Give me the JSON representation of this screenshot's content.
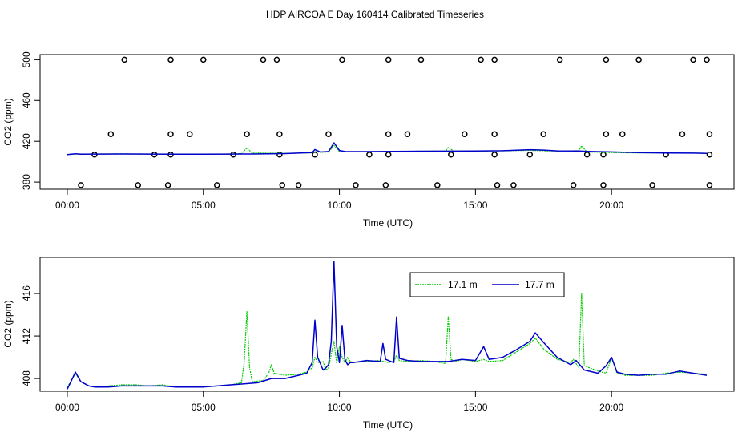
{
  "title": "HDP AIRCOA E  Day 160414  Calibrated Timeseries",
  "colors": {
    "green": "#00cc00",
    "blue": "#0000cc",
    "black": "#000000"
  },
  "chart_data": [
    {
      "type": "line",
      "xlabel": "Time (UTC)",
      "ylabel": "CO2 (ppm)",
      "xlim": [
        -1,
        24.5
      ],
      "ylim": [
        373,
        505
      ],
      "xticks": [
        0,
        5,
        10,
        15,
        20
      ],
      "xtick_labels": [
        "00:00",
        "05:00",
        "10:00",
        "15:00",
        "20:00"
      ],
      "yticks": [
        380,
        420,
        460,
        500
      ],
      "ytick_labels": [
        "380",
        "420",
        "460",
        "500"
      ],
      "calibration_points": [
        {
          "x": 2.1,
          "y": 500
        },
        {
          "x": 3.8,
          "y": 500
        },
        {
          "x": 5.0,
          "y": 500
        },
        {
          "x": 7.2,
          "y": 500
        },
        {
          "x": 7.7,
          "y": 500
        },
        {
          "x": 10.1,
          "y": 500
        },
        {
          "x": 11.8,
          "y": 500
        },
        {
          "x": 13.0,
          "y": 500
        },
        {
          "x": 15.2,
          "y": 500
        },
        {
          "x": 15.7,
          "y": 500
        },
        {
          "x": 18.1,
          "y": 500
        },
        {
          "x": 19.8,
          "y": 500
        },
        {
          "x": 21.0,
          "y": 500
        },
        {
          "x": 23.0,
          "y": 500
        },
        {
          "x": 23.5,
          "y": 500
        },
        {
          "x": 1.6,
          "y": 427
        },
        {
          "x": 3.8,
          "y": 427
        },
        {
          "x": 4.5,
          "y": 427
        },
        {
          "x": 6.6,
          "y": 427
        },
        {
          "x": 7.8,
          "y": 427
        },
        {
          "x": 9.6,
          "y": 427
        },
        {
          "x": 11.8,
          "y": 427
        },
        {
          "x": 12.5,
          "y": 427
        },
        {
          "x": 14.6,
          "y": 427
        },
        {
          "x": 15.7,
          "y": 427
        },
        {
          "x": 17.5,
          "y": 427
        },
        {
          "x": 19.8,
          "y": 427
        },
        {
          "x": 20.4,
          "y": 427
        },
        {
          "x": 22.6,
          "y": 427
        },
        {
          "x": 23.6,
          "y": 427
        },
        {
          "x": 1.0,
          "y": 407
        },
        {
          "x": 3.2,
          "y": 407
        },
        {
          "x": 3.8,
          "y": 407
        },
        {
          "x": 6.1,
          "y": 407
        },
        {
          "x": 7.8,
          "y": 407
        },
        {
          "x": 9.1,
          "y": 407
        },
        {
          "x": 11.1,
          "y": 407
        },
        {
          "x": 11.8,
          "y": 407
        },
        {
          "x": 14.1,
          "y": 407
        },
        {
          "x": 15.7,
          "y": 407
        },
        {
          "x": 17.0,
          "y": 407
        },
        {
          "x": 19.1,
          "y": 407
        },
        {
          "x": 19.7,
          "y": 407
        },
        {
          "x": 22.0,
          "y": 407
        },
        {
          "x": 23.6,
          "y": 407
        },
        {
          "x": 0.5,
          "y": 377
        },
        {
          "x": 2.6,
          "y": 377
        },
        {
          "x": 3.7,
          "y": 377
        },
        {
          "x": 5.5,
          "y": 377
        },
        {
          "x": 7.9,
          "y": 377
        },
        {
          "x": 8.5,
          "y": 377
        },
        {
          "x": 10.6,
          "y": 377
        },
        {
          "x": 11.7,
          "y": 377
        },
        {
          "x": 13.6,
          "y": 377
        },
        {
          "x": 15.8,
          "y": 377
        },
        {
          "x": 16.4,
          "y": 377
        },
        {
          "x": 18.6,
          "y": 377
        },
        {
          "x": 19.7,
          "y": 377
        },
        {
          "x": 21.5,
          "y": 377
        },
        {
          "x": 23.6,
          "y": 377
        }
      ],
      "series": [
        {
          "name": "17.1 m",
          "color": "green",
          "x": [
            0,
            0.3,
            0.5,
            1,
            2,
            3,
            4,
            5,
            6,
            6.4,
            6.6,
            6.8,
            8,
            9,
            9.1,
            9.3,
            9.6,
            9.8,
            10,
            10.2,
            11,
            12,
            13,
            13.9,
            14,
            14.2,
            15,
            16,
            17,
            17.5,
            18,
            18.8,
            18.9,
            19.1,
            20,
            21,
            22,
            23,
            23.5
          ],
          "y": [
            407,
            407.6,
            407.4,
            407.5,
            407.7,
            407.5,
            407.4,
            407.3,
            407.6,
            408,
            413.5,
            408.5,
            408.2,
            408.7,
            410,
            409.2,
            409.5,
            416,
            410,
            409.6,
            409.8,
            410.2,
            410.3,
            410.5,
            414,
            410.5,
            410.3,
            410.7,
            411.2,
            410.8,
            410.4,
            410.8,
            415.5,
            409.5,
            409,
            408.6,
            408.7,
            408.4,
            408.3
          ]
        },
        {
          "name": "17.7 m",
          "color": "blue",
          "x": [
            0,
            0.3,
            0.5,
            1,
            2,
            3,
            4,
            5,
            6,
            6.4,
            6.6,
            6.8,
            8,
            9,
            9.1,
            9.3,
            9.6,
            9.8,
            10,
            10.2,
            11,
            12,
            13,
            13.9,
            14,
            14.2,
            15,
            16,
            17,
            17.5,
            18,
            18.8,
            18.9,
            19.1,
            20,
            21,
            22,
            23,
            23.5
          ],
          "y": [
            407,
            407.7,
            407.4,
            407.5,
            407.6,
            407.5,
            407.4,
            407.3,
            407.5,
            407.6,
            407.6,
            407.6,
            408,
            409,
            412,
            409.5,
            410,
            418.5,
            411,
            410,
            409.9,
            410.2,
            410.3,
            410.4,
            410.4,
            410.4,
            410.5,
            410.8,
            411.8,
            411.4,
            410.6,
            410.5,
            410.4,
            410.2,
            409.6,
            408.9,
            408.6,
            408.4,
            408.2
          ]
        }
      ]
    },
    {
      "type": "line",
      "xlabel": "Time (UTC)",
      "ylabel": "CO2 (ppm)",
      "xlim": [
        -1,
        24.5
      ],
      "ylim": [
        406.8,
        419.4
      ],
      "xticks": [
        0,
        5,
        10,
        15,
        20
      ],
      "xtick_labels": [
        "00:00",
        "05:00",
        "10:00",
        "15:00",
        "20:00"
      ],
      "yticks": [
        408,
        412,
        416
      ],
      "ytick_labels": [
        "408",
        "412",
        "416"
      ],
      "legend": {
        "position": "top-right",
        "entries": [
          "17.1 m",
          "17.7 m"
        ]
      },
      "series": [
        {
          "name": "17.1 m",
          "color": "green",
          "x": [
            0,
            0.15,
            0.3,
            0.5,
            0.8,
            1.0,
            1.5,
            2.0,
            2.5,
            3.0,
            3.5,
            4.0,
            4.5,
            5.0,
            5.5,
            6.0,
            6.4,
            6.5,
            6.6,
            6.7,
            6.8,
            7.2,
            7.4,
            7.5,
            7.6,
            8.0,
            8.5,
            8.8,
            9.0,
            9.1,
            9.2,
            9.4,
            9.5,
            9.6,
            9.7,
            9.8,
            9.9,
            10.0,
            10.1,
            10.2,
            10.3,
            10.4,
            10.5,
            11.0,
            11.5,
            11.8,
            12.0,
            12.1,
            12.2,
            12.5,
            13.0,
            13.5,
            13.9,
            14.0,
            14.1,
            14.3,
            14.5,
            15.0,
            15.3,
            15.5,
            16.0,
            16.5,
            17.0,
            17.2,
            17.5,
            18.0,
            18.5,
            18.6,
            18.8,
            18.9,
            19.0,
            19.2,
            19.5,
            19.8,
            20.0,
            20.2,
            20.5,
            21.0,
            21.5,
            22.0,
            22.5,
            23.0,
            23.5
          ],
          "y": [
            407.2,
            407.8,
            408.5,
            407.7,
            407.3,
            407.2,
            407.3,
            407.4,
            407.4,
            407.3,
            407.4,
            407.2,
            407.2,
            407.2,
            407.3,
            407.4,
            407.6,
            409.5,
            414.3,
            409.0,
            407.7,
            407.8,
            408.5,
            409.3,
            408.5,
            408.3,
            408.4,
            408.6,
            409.0,
            410.0,
            409.5,
            409.6,
            408.8,
            409.0,
            410.3,
            411.5,
            409.4,
            411.0,
            410.0,
            409.5,
            410.0,
            409.6,
            409.5,
            409.6,
            409.7,
            409.5,
            409.6,
            410.2,
            409.7,
            409.6,
            409.7,
            409.6,
            409.4,
            413.8,
            409.8,
            409.6,
            409.8,
            409.6,
            409.8,
            409.6,
            409.7,
            410.5,
            411.3,
            411.8,
            410.8,
            409.8,
            409.5,
            409.8,
            409.0,
            416.0,
            409.2,
            409.0,
            408.7,
            408.5,
            410.0,
            408.5,
            408.3,
            408.3,
            408.3,
            408.5,
            408.6,
            408.5,
            408.4
          ]
        },
        {
          "name": "17.7 m",
          "color": "blue",
          "x": [
            0,
            0.15,
            0.3,
            0.5,
            0.8,
            1.0,
            1.5,
            2.0,
            2.5,
            3.0,
            3.5,
            4.0,
            4.5,
            5.0,
            5.5,
            6.0,
            6.5,
            7.0,
            7.5,
            8.0,
            8.5,
            8.8,
            9.0,
            9.1,
            9.2,
            9.4,
            9.5,
            9.6,
            9.7,
            9.8,
            9.9,
            10.0,
            10.1,
            10.2,
            10.3,
            10.4,
            10.5,
            11.0,
            11.5,
            11.6,
            11.7,
            11.9,
            12.0,
            12.1,
            12.2,
            12.5,
            13.0,
            13.5,
            14.0,
            14.5,
            15.0,
            15.3,
            15.5,
            16.0,
            16.5,
            17.0,
            17.2,
            17.5,
            18.0,
            18.5,
            18.7,
            19.0,
            19.5,
            19.8,
            20.0,
            20.2,
            20.5,
            21.0,
            21.5,
            22.0,
            22.5,
            23.0,
            23.5
          ],
          "y": [
            407.0,
            407.8,
            408.6,
            407.7,
            407.3,
            407.2,
            407.2,
            407.3,
            407.3,
            407.3,
            407.3,
            407.2,
            407.2,
            407.2,
            407.3,
            407.4,
            407.5,
            407.6,
            408.0,
            408.0,
            408.3,
            408.5,
            409.5,
            413.5,
            410.0,
            408.8,
            409.0,
            409.3,
            411.5,
            419.0,
            411.0,
            409.5,
            413.0,
            409.8,
            409.3,
            409.5,
            409.5,
            409.7,
            409.6,
            411.3,
            409.8,
            409.6,
            409.5,
            413.8,
            409.9,
            409.7,
            409.6,
            409.6,
            409.6,
            409.8,
            409.7,
            411.0,
            409.8,
            410.0,
            410.7,
            411.5,
            412.3,
            411.4,
            410.0,
            409.3,
            409.7,
            408.8,
            408.5,
            409.2,
            410.0,
            408.6,
            408.4,
            408.3,
            408.4,
            408.4,
            408.7,
            408.5,
            408.3
          ]
        }
      ]
    }
  ]
}
